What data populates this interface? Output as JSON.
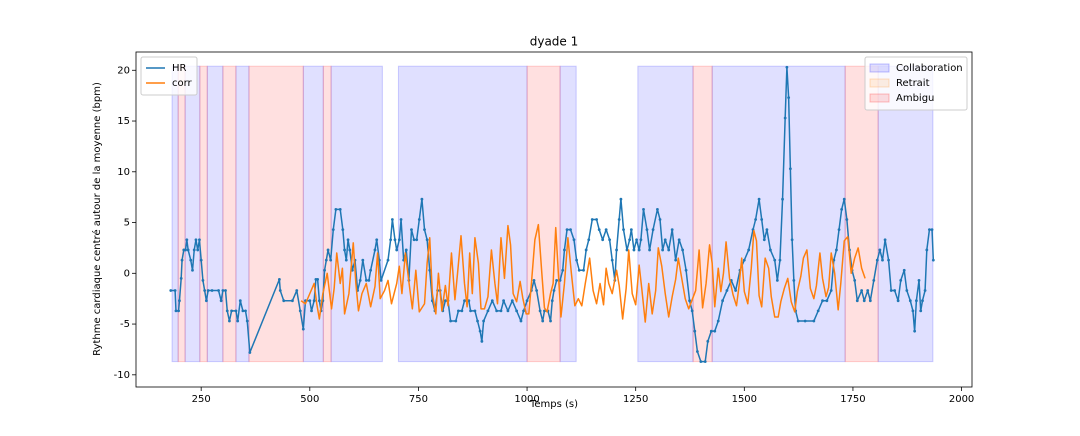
{
  "chart_data": {
    "type": "line",
    "title": "dyade 1",
    "x_label": "Temps (s)",
    "y_label": "Rythme cardiaque centré autour de la moyenne (bpm)",
    "xlim": [
      100,
      2024
    ],
    "ylim": [
      -11.2,
      21.8
    ],
    "xticks": [
      250,
      500,
      750,
      1000,
      1250,
      1500,
      1750,
      2000
    ],
    "yticks": [
      -10,
      -5,
      0,
      5,
      10,
      15,
      20
    ],
    "series_legend": "upper left",
    "span_legend": "upper right",
    "span_ylim": [
      -8.7,
      20.4
    ],
    "series": [
      {
        "name": "HR",
        "color": "#1f77b4",
        "markers": true,
        "x": [
          180,
          190,
          192,
          198,
          200,
          204,
          206,
          210,
          214,
          217,
          220,
          226,
          230,
          234,
          238,
          242,
          246,
          250,
          254,
          258,
          262,
          266,
          275,
          290,
          296,
          300,
          306,
          310,
          315,
          320,
          330,
          334,
          340,
          346,
          352,
          356,
          362,
          430,
          432,
          440,
          460,
          470,
          478,
          485,
          490,
          500,
          504,
          510,
          514,
          518,
          522,
          526,
          530,
          534,
          538,
          542,
          548,
          554,
          560,
          570,
          576,
          580,
          584,
          588,
          592,
          598,
          604,
          610,
          616,
          622,
          630,
          636,
          640,
          650,
          654,
          660,
          664,
          680,
          686,
          690,
          696,
          700,
          706,
          710,
          716,
          722,
          728,
          734,
          740,
          746,
          752,
          758,
          764,
          770,
          776,
          782,
          788,
          794,
          800,
          806,
          812,
          818,
          824,
          836,
          842,
          850,
          856,
          866,
          870,
          880,
          886,
          892,
          896,
          900,
          910,
          920,
          930,
          940,
          946,
          956,
          966,
          976,
          986,
          992,
          1000,
          1010,
          1016,
          1022,
          1030,
          1036,
          1040,
          1048,
          1054,
          1058,
          1062,
          1068,
          1076,
          1082,
          1086,
          1092,
          1100,
          1108,
          1114,
          1120,
          1130,
          1136,
          1142,
          1150,
          1160,
          1166,
          1174,
          1182,
          1190,
          1196,
          1202,
          1206,
          1212,
          1216,
          1222,
          1230,
          1236,
          1240,
          1246,
          1252,
          1258,
          1262,
          1268,
          1276,
          1282,
          1290,
          1300,
          1306,
          1312,
          1318,
          1326,
          1334,
          1342,
          1350,
          1358,
          1366,
          1374,
          1380,
          1386,
          1392,
          1400,
          1410,
          1416,
          1424,
          1432,
          1440,
          1450,
          1460,
          1470,
          1480,
          1490,
          1500,
          1510,
          1520,
          1526,
          1534,
          1540,
          1546,
          1552,
          1560,
          1570,
          1576,
          1582,
          1588,
          1594,
          1598,
          1602,
          1606,
          1610,
          1614,
          1618,
          1624,
          1640,
          1660,
          1670,
          1680,
          1690,
          1700,
          1706,
          1712,
          1718,
          1724,
          1730,
          1736,
          1742,
          1748,
          1754,
          1760,
          1770,
          1776,
          1784,
          1790,
          1798,
          1806,
          1812,
          1818,
          1824,
          1832,
          1838,
          1846,
          1854,
          1860,
          1868,
          1874,
          1882,
          1888,
          1892,
          1896,
          1902,
          1906,
          1910,
          1916,
          1920,
          1926,
          1932,
          1935
        ],
        "values": [
          -1.7,
          -1.7,
          -3.7,
          -3.7,
          -2.7,
          -0.5,
          1.3,
          2.3,
          2.3,
          3.3,
          2.3,
          1.3,
          0.3,
          2.3,
          3.3,
          2.3,
          3.3,
          1.3,
          -0.7,
          -1.7,
          -2.7,
          -1.7,
          -1.7,
          -1.7,
          -2.7,
          -1.7,
          -1.7,
          -3.7,
          -4.7,
          -3.7,
          -3.7,
          -4.7,
          -2.7,
          -3.7,
          -3.7,
          -4.7,
          -7.8,
          -0.6,
          -1.7,
          -2.7,
          -2.7,
          -1.7,
          -3.7,
          -5.5,
          -2.7,
          -2.7,
          -3.7,
          -2.7,
          -0.6,
          -0.6,
          -2.7,
          -3.7,
          -2.7,
          0.3,
          1.3,
          2.3,
          1.3,
          4.3,
          6.3,
          6.3,
          4.3,
          2.3,
          1.3,
          3.3,
          2.3,
          0.3,
          1.3,
          -1.7,
          -0.7,
          1.3,
          -0.7,
          -0.7,
          0.3,
          2.3,
          3.3,
          1.3,
          -0.7,
          1.3,
          3.3,
          5.3,
          3.3,
          2.3,
          3.3,
          5.3,
          1.3,
          2.3,
          -0.7,
          4.3,
          3.3,
          3.3,
          5.3,
          7.3,
          4.3,
          3.3,
          0.3,
          -2.7,
          -3.7,
          -1.7,
          -1.7,
          -3.7,
          -2.7,
          -2.7,
          -4.7,
          -4.7,
          -3.7,
          -3.7,
          -2.7,
          -2.7,
          -3.7,
          -3.7,
          -4.7,
          -5.7,
          -6.7,
          -4.7,
          -3.7,
          -2.7,
          -3.7,
          -3.7,
          -2.7,
          -3.7,
          -2.7,
          -3.7,
          -4.7,
          -3.7,
          -2.7,
          -1.7,
          -0.7,
          -1.7,
          -3.7,
          -4.7,
          -3.7,
          -3.7,
          -4.7,
          -2.7,
          -1.7,
          -0.7,
          -0.7,
          0.3,
          2.3,
          4.3,
          4.3,
          3.3,
          1.3,
          0.3,
          0.3,
          2.3,
          3.3,
          5.3,
          5.3,
          4.3,
          3.3,
          4.3,
          3.3,
          1.3,
          -0.7,
          2.3,
          5.3,
          7.3,
          4.3,
          2.3,
          3.3,
          4.3,
          2.3,
          3.3,
          2.3,
          3.3,
          6.3,
          4.3,
          2.3,
          4.3,
          6.3,
          5.3,
          2.3,
          3.3,
          2.3,
          4.3,
          1.3,
          3.3,
          2.3,
          0.3,
          -2.7,
          -3.7,
          -5.7,
          -7.7,
          -8.7,
          -8.7,
          -6.7,
          -5.7,
          -5.7,
          -4.7,
          -2.7,
          -1.7,
          -0.7,
          -1.7,
          0.3,
          1.3,
          2.3,
          4.3,
          5.3,
          7.3,
          5.3,
          3.3,
          4.3,
          2.3,
          1.3,
          -0.7,
          1.3,
          7.3,
          15.3,
          20.3,
          17.3,
          10.3,
          3.3,
          -0.7,
          -3.7,
          -4.7,
          -4.7,
          -4.7,
          -3.7,
          -2.7,
          -2.7,
          -1.7,
          1.3,
          2.3,
          4.3,
          6.3,
          7.3,
          5.3,
          2.3,
          0.3,
          -0.7,
          -2.7,
          -1.7,
          -2.7,
          -1.7,
          -2.7,
          -0.7,
          1.3,
          2.3,
          1.3,
          3.3,
          1.3,
          -1.7,
          -1.7,
          -2.7,
          -0.7,
          0.3,
          -1.7,
          -2.7,
          -3.7,
          -5.7,
          -2.7,
          -0.7,
          -3.7,
          -2.7,
          -1.7,
          2.3,
          4.3,
          4.3,
          1.3
        ]
      },
      {
        "name": "corr",
        "color": "#ff7f0e",
        "markers": false,
        "x": [
          480,
          490,
          500,
          510,
          516,
          522,
          530,
          540,
          550,
          556,
          562,
          570,
          575,
          580,
          590,
          600,
          606,
          612,
          620,
          630,
          640,
          650,
          656,
          662,
          672,
          680,
          688,
          700,
          706,
          712,
          720,
          730,
          736,
          744,
          752,
          764,
          770,
          776,
          782,
          790,
          796,
          804,
          812,
          818,
          826,
          834,
          840,
          848,
          856,
          862,
          868,
          874,
          880,
          888,
          894,
          902,
          910,
          918,
          926,
          932,
          940,
          948,
          956,
          962,
          968,
          976,
          984,
          990,
          998,
          1004,
          1010,
          1018,
          1026,
          1034,
          1040,
          1046,
          1054,
          1060,
          1066,
          1072,
          1078,
          1086,
          1094,
          1102,
          1110,
          1118,
          1126,
          1134,
          1144,
          1152,
          1160,
          1168,
          1176,
          1182,
          1188,
          1196,
          1206,
          1212,
          1220,
          1228,
          1234,
          1242,
          1250,
          1258,
          1264,
          1272,
          1280,
          1288,
          1296,
          1302,
          1310,
          1318,
          1326,
          1334,
          1342,
          1348,
          1356,
          1364,
          1372,
          1380,
          1388,
          1396,
          1404,
          1412,
          1420,
          1426,
          1432,
          1440,
          1446,
          1452,
          1458,
          1466,
          1474,
          1482,
          1488,
          1494,
          1500,
          1508,
          1516,
          1522,
          1528,
          1534,
          1540,
          1548,
          1556,
          1562,
          1570,
          1578,
          1584,
          1592,
          1600,
          1608,
          1616,
          1622,
          1630,
          1636,
          1644,
          1652,
          1660,
          1666,
          1674,
          1680,
          1688,
          1694,
          1700,
          1708,
          1716,
          1722,
          1730,
          1738,
          1746,
          1754,
          1762,
          1770,
          1778
        ],
        "values": [
          -2.7,
          -3,
          -2,
          -1,
          -3,
          -4.5,
          -2,
          0,
          -3.5,
          -1.5,
          2,
          -1,
          0.5,
          -4,
          -2,
          3,
          -1,
          -3.7,
          -2,
          -1,
          -3.3,
          -1.3,
          2,
          -2.5,
          -1.7,
          -0.7,
          -3,
          -1,
          0.7,
          -2,
          2,
          -1.5,
          -3.5,
          0.3,
          -3.8,
          -3,
          1,
          3.5,
          -2,
          -4,
          0,
          -3.7,
          -1.2,
          -3.2,
          2,
          -2.6,
          0,
          3.7,
          -1,
          -3.3,
          2,
          -2,
          3.5,
          1,
          -3.5,
          -3.5,
          -2.3,
          2.3,
          -1,
          -3,
          3.5,
          -0.5,
          4.7,
          2.8,
          -2,
          -2.8,
          -0.8,
          -2.4,
          -4,
          -4,
          -1,
          3.3,
          4.8,
          0,
          -3.4,
          -3.8,
          -2,
          -1,
          4.5,
          0,
          -4.3,
          -1,
          3.5,
          0,
          -3.2,
          -2.5,
          -3.2,
          -1,
          1.5,
          -1.7,
          -3,
          -1,
          -3.1,
          0.5,
          -1,
          -2,
          0.3,
          -1.2,
          -4.5,
          -1.5,
          2.3,
          -2,
          -3.1,
          0.8,
          -1.5,
          -4.8,
          -1,
          -4,
          -1.7,
          2.5,
          0.7,
          -2,
          -4.3,
          -2.3,
          -0.6,
          1.5,
          -0.5,
          -2.5,
          -3.5,
          -2.6,
          -1.7,
          2.3,
          -3.4,
          -1,
          2.8,
          1,
          -3.3,
          0.5,
          -1.8,
          0,
          3.1,
          -0.5,
          -2.1,
          -3.2,
          -1.2,
          1.5,
          -1.8,
          -3,
          0.5,
          4.2,
          3.2,
          -2.2,
          -3.3,
          1.5,
          0.5,
          -2.3,
          -4.3,
          -4.3,
          -2.8,
          -1.5,
          -0.5,
          -2.8,
          -3.8,
          -1.8,
          -0.3,
          1.5,
          2.3,
          -1.5,
          -2.5,
          -1.2,
          2,
          -0.5,
          -2.3,
          -1.4,
          2,
          0,
          -3.6,
          -1,
          3.2,
          3.6,
          0,
          1.5,
          2.5,
          0.5,
          -0.5
        ]
      }
    ],
    "span_categories": [
      {
        "name": "Collaboration",
        "color": "blue",
        "alpha": 0.12,
        "spans": [
          [
            183,
            197
          ],
          [
            213,
            247
          ],
          [
            264,
            300
          ],
          [
            330,
            360
          ],
          [
            485,
            531
          ],
          [
            549,
            667
          ],
          [
            704,
            1000
          ],
          [
            1076,
            1113
          ],
          [
            1255,
            1382
          ],
          [
            1426,
            1732
          ],
          [
            1808,
            1934
          ]
        ]
      },
      {
        "name": "Retrait",
        "color": "#ff9a3c",
        "alpha": 0.15,
        "spans": []
      },
      {
        "name": "Ambigu",
        "color": "red",
        "alpha": 0.12,
        "spans": [
          [
            197,
            213
          ],
          [
            247,
            264
          ],
          [
            300,
            330
          ],
          [
            360,
            485
          ],
          [
            531,
            549
          ],
          [
            1000,
            1076
          ],
          [
            1382,
            1426
          ],
          [
            1732,
            1808
          ]
        ]
      }
    ]
  }
}
